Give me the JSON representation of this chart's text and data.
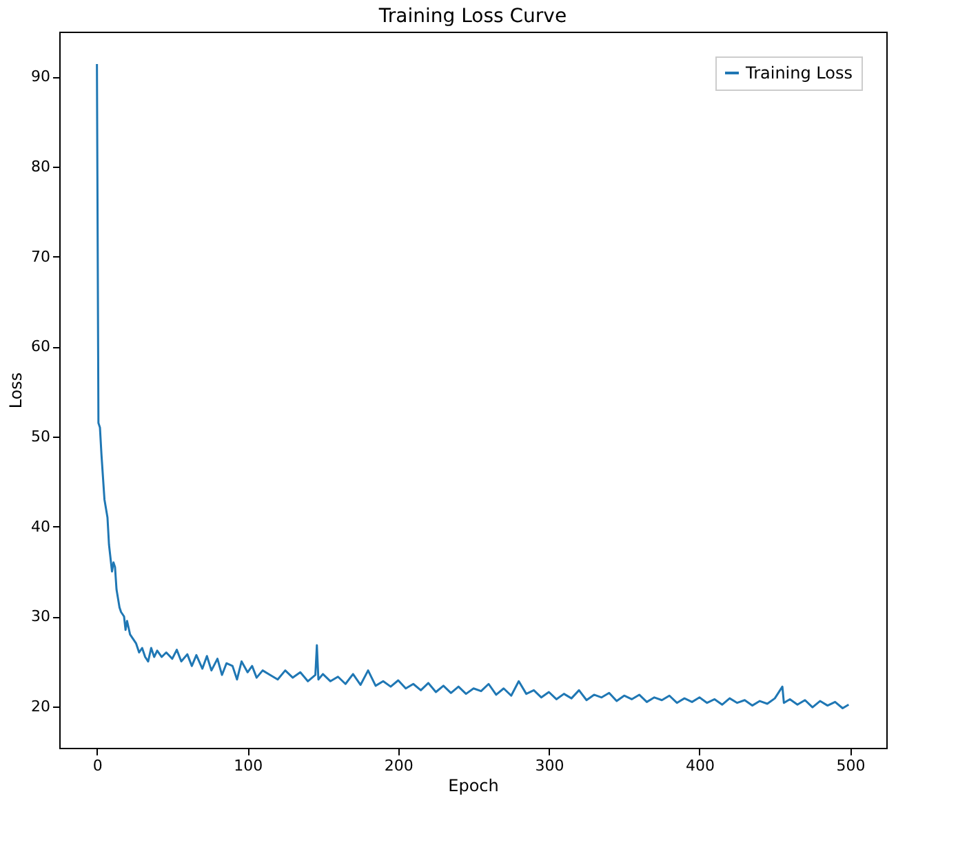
{
  "chart_data": {
    "type": "line",
    "title": "Training Loss Curve",
    "xlabel": "Epoch",
    "ylabel": "Loss",
    "xlim": [
      -25,
      524
    ],
    "ylim": [
      15.4,
      95
    ],
    "xticks": [
      0,
      100,
      200,
      300,
      400,
      500
    ],
    "yticks": [
      20,
      30,
      40,
      50,
      60,
      70,
      80,
      90
    ],
    "legend": "top right",
    "grid": false,
    "series": [
      {
        "name": "Training Loss",
        "color": "#1f77b4",
        "x": [
          0,
          1,
          2,
          3,
          5,
          7,
          8,
          10,
          11,
          12,
          13,
          15,
          16,
          18,
          19,
          20,
          22,
          24,
          26,
          28,
          30,
          32,
          34,
          36,
          38,
          40,
          43,
          46,
          50,
          53,
          56,
          60,
          63,
          66,
          70,
          73,
          76,
          80,
          83,
          86,
          90,
          93,
          96,
          100,
          103,
          106,
          110,
          115,
          120,
          125,
          130,
          135,
          140,
          145,
          146,
          147,
          150,
          155,
          160,
          165,
          170,
          175,
          180,
          185,
          190,
          195,
          200,
          205,
          210,
          215,
          220,
          225,
          230,
          235,
          240,
          245,
          250,
          255,
          260,
          265,
          270,
          275,
          280,
          285,
          290,
          295,
          300,
          305,
          310,
          315,
          320,
          325,
          330,
          335,
          340,
          345,
          350,
          355,
          360,
          365,
          370,
          375,
          380,
          385,
          390,
          395,
          400,
          405,
          410,
          415,
          420,
          425,
          430,
          435,
          440,
          445,
          450,
          455,
          456,
          460,
          465,
          470,
          475,
          480,
          485,
          490,
          495,
          499
        ],
        "values": [
          91.4,
          51.5,
          51,
          48,
          43,
          41,
          38,
          35,
          36,
          35.5,
          33,
          31,
          30.5,
          30,
          28.5,
          29.5,
          28,
          27.5,
          27,
          26,
          26.5,
          25.5,
          25,
          26.5,
          25.5,
          26.2,
          25.5,
          26,
          25.3,
          26.3,
          25,
          25.8,
          24.5,
          25.7,
          24.2,
          25.6,
          24,
          25.3,
          23.5,
          24.8,
          24.5,
          23,
          25,
          23.8,
          24.5,
          23.2,
          24,
          23.5,
          23,
          24,
          23.2,
          23.8,
          22.8,
          23.5,
          26.8,
          23,
          23.6,
          22.8,
          23.3,
          22.5,
          23.6,
          22.4,
          24,
          22.3,
          22.8,
          22.2,
          22.9,
          22,
          22.5,
          21.8,
          22.6,
          21.6,
          22.3,
          21.5,
          22.2,
          21.4,
          22,
          21.7,
          22.5,
          21.3,
          22,
          21.2,
          22.8,
          21.4,
          21.8,
          21,
          21.6,
          20.8,
          21.4,
          20.9,
          21.8,
          20.7,
          21.3,
          21,
          21.5,
          20.6,
          21.2,
          20.8,
          21.3,
          20.5,
          21,
          20.7,
          21.2,
          20.4,
          20.9,
          20.5,
          21,
          20.4,
          20.8,
          20.2,
          20.9,
          20.4,
          20.7,
          20.1,
          20.6,
          20.3,
          20.9,
          22.2,
          20.4,
          20.8,
          20.2,
          20.7,
          19.9,
          20.6,
          20.1,
          20.5,
          19.8,
          20.2
        ]
      }
    ]
  }
}
